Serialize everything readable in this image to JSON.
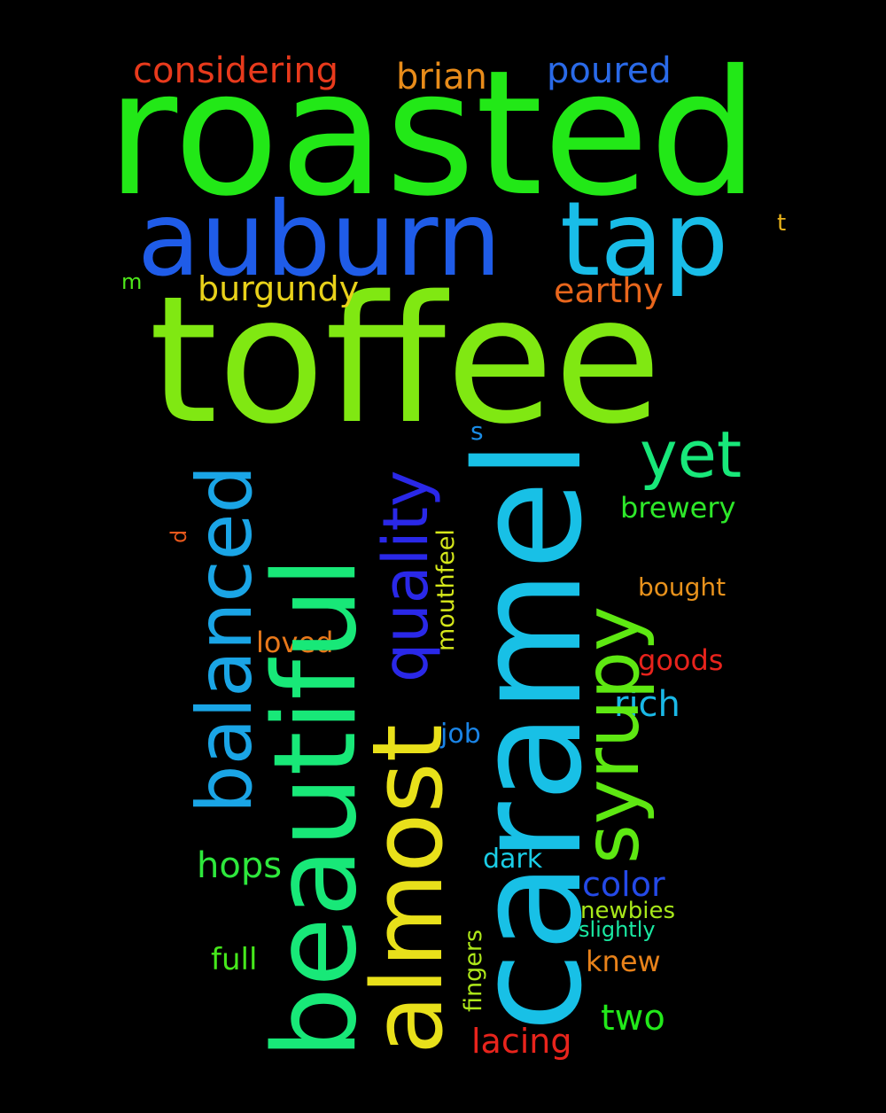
{
  "background": "#000000",
  "words": [
    {
      "text": "roasted",
      "color": "#22e817"
    },
    {
      "text": "toffee",
      "color": "#80e812"
    },
    {
      "text": "auburn",
      "color": "#1f5ce8"
    },
    {
      "text": "tap",
      "color": "#19bde8"
    },
    {
      "text": "caramel",
      "color": "#18c0e6"
    },
    {
      "text": "beautiful",
      "color": "#18e878"
    },
    {
      "text": "almost",
      "color": "#e8e01a"
    },
    {
      "text": "syrupy",
      "color": "#5ee812"
    },
    {
      "text": "balanced",
      "color": "#1aa5e6"
    },
    {
      "text": "quality",
      "color": "#2a28e8"
    },
    {
      "text": "yet",
      "color": "#18e87a"
    },
    {
      "text": "considering",
      "color": "#e83a1c"
    },
    {
      "text": "brian",
      "color": "#e88c1a"
    },
    {
      "text": "poured",
      "color": "#2a6ae8"
    },
    {
      "text": "burgundy",
      "color": "#e8d11a"
    },
    {
      "text": "earthy",
      "color": "#e8661c"
    },
    {
      "text": "brewery",
      "color": "#2ee82a"
    },
    {
      "text": "mouthfeel",
      "color": "#d6e81a"
    },
    {
      "text": "bought",
      "color": "#e8921c"
    },
    {
      "text": "loved",
      "color": "#e8781a"
    },
    {
      "text": "goods",
      "color": "#e8231c"
    },
    {
      "text": "rich",
      "color": "#1ab8e6"
    },
    {
      "text": "job",
      "color": "#1a84e6"
    },
    {
      "text": "hops",
      "color": "#2ee83c"
    },
    {
      "text": "dark",
      "color": "#1acde6"
    },
    {
      "text": "color",
      "color": "#244ae8"
    },
    {
      "text": "newbies",
      "color": "#a8e81a"
    },
    {
      "text": "slightly",
      "color": "#1ae8a2"
    },
    {
      "text": "fingers",
      "color": "#aee81a"
    },
    {
      "text": "full",
      "color": "#46e81c"
    },
    {
      "text": "knew",
      "color": "#e8821a"
    },
    {
      "text": "two",
      "color": "#22e81a"
    },
    {
      "text": "lacing",
      "color": "#e8241c"
    },
    {
      "text": "t",
      "color": "#e8b21a"
    },
    {
      "text": "m",
      "color": "#4ee81a"
    },
    {
      "text": "s",
      "color": "#1a8ce6"
    },
    {
      "text": "d",
      "color": "#e8581c"
    }
  ]
}
